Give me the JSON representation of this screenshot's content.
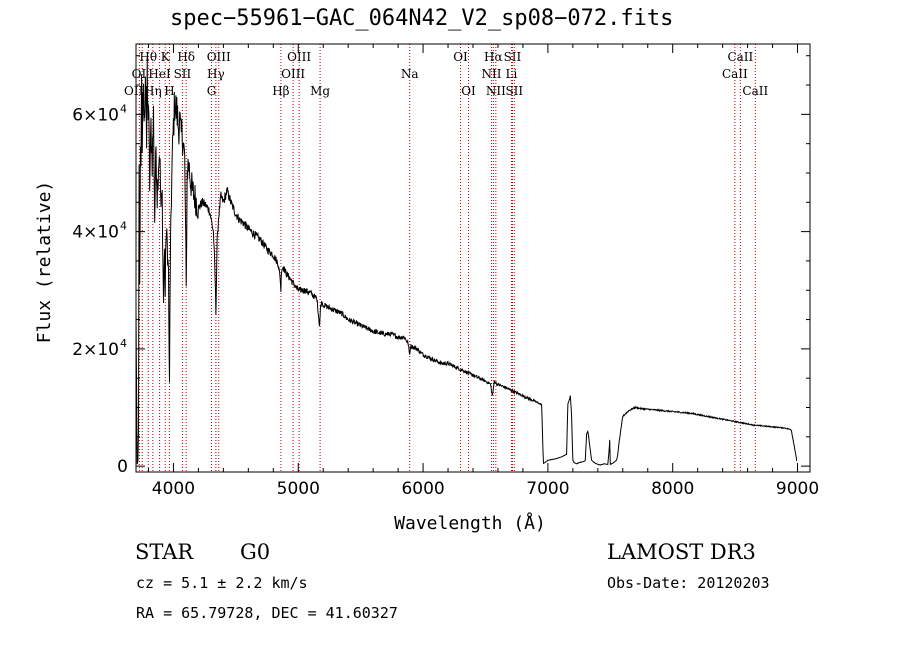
{
  "chart_data": {
    "type": "line",
    "title": "spec−55961−GAC_064N42_V2_sp08−072.fits",
    "xlabel": "Wavelength (Å)",
    "ylabel": "Flux (relative)",
    "xlim": [
      3700,
      9100
    ],
    "ylim": [
      -1000,
      72000
    ],
    "x_ticks": [
      {
        "value": 4000,
        "label": "4000"
      },
      {
        "value": 5000,
        "label": "5000"
      },
      {
        "value": 6000,
        "label": "6000"
      },
      {
        "value": 7000,
        "label": "7000"
      },
      {
        "value": 8000,
        "label": "8000"
      },
      {
        "value": 9000,
        "label": "9000"
      }
    ],
    "y_ticks": [
      {
        "value": 0,
        "base": "0",
        "exp": ""
      },
      {
        "value": 20000,
        "base": "2×10",
        "exp": "4"
      },
      {
        "value": 40000,
        "base": "4×10",
        "exp": "4"
      },
      {
        "value": 60000,
        "base": "6×10",
        "exp": "4"
      }
    ],
    "spectrum": {
      "x": [
        3700,
        3705,
        3710,
        3715,
        3720,
        3725,
        3730,
        3735,
        3740,
        3745,
        3750,
        3755,
        3760,
        3765,
        3770,
        3775,
        3780,
        3785,
        3790,
        3795,
        3800,
        3810,
        3820,
        3830,
        3840,
        3850,
        3860,
        3870,
        3880,
        3890,
        3900,
        3910,
        3920,
        3930,
        3934,
        3940,
        3950,
        3960,
        3965,
        3968,
        3972,
        3980,
        3990,
        4000,
        4010,
        4020,
        4030,
        4040,
        4050,
        4060,
        4070,
        4080,
        4090,
        4100,
        4102,
        4106,
        4110,
        4120,
        4130,
        4150,
        4170,
        4200,
        4230,
        4260,
        4290,
        4320,
        4330,
        4335,
        4340,
        4345,
        4350,
        4360,
        4380,
        4400,
        4430,
        4460,
        4500,
        4530,
        4560,
        4600,
        4650,
        4700,
        4750,
        4800,
        4840,
        4855,
        4861,
        4866,
        4880,
        4900,
        4950,
        5000,
        5050,
        5100,
        5150,
        5170,
        5175,
        5180,
        5190,
        5200,
        5250,
        5300,
        5350,
        5400,
        5450,
        5500,
        5550,
        5600,
        5650,
        5700,
        5750,
        5800,
        5850,
        5880,
        5892,
        5900,
        5950,
        6000,
        6050,
        6100,
        6150,
        6200,
        6250,
        6300,
        6350,
        6400,
        6450,
        6500,
        6540,
        6555,
        6563,
        6570,
        6590,
        6650,
        6700,
        6750,
        6800,
        6850,
        6900,
        6950,
        6960,
        6965,
        6975,
        6990,
        7000,
        7050,
        7100,
        7150,
        7160,
        7180,
        7190,
        7200,
        7205,
        7210,
        7230,
        7250,
        7290,
        7300,
        7310,
        7320,
        7350,
        7380,
        7400,
        7420,
        7450,
        7480,
        7490,
        7495,
        7500,
        7520,
        7550,
        7560,
        7570,
        7600,
        7650,
        7700,
        7750,
        7800,
        7850,
        7900,
        7950,
        8000,
        8050,
        8100,
        8150,
        8200,
        8250,
        8300,
        8350,
        8400,
        8450,
        8500,
        8550,
        8600,
        8650,
        8700,
        8750,
        8800,
        8850,
        8900,
        8950,
        8990,
        8995,
        9000
      ],
      "flux": [
        26000,
        13000,
        300,
        1000,
        6000,
        50000,
        30000,
        54000,
        53000,
        64000,
        56000,
        62000,
        67000,
        56000,
        60000,
        64000,
        66000,
        55000,
        66000,
        60000,
        62000,
        48000,
        58000,
        52000,
        60000,
        42000,
        55000,
        46000,
        52000,
        54000,
        44000,
        46000,
        28000,
        38000,
        29000,
        40000,
        38000,
        33000,
        19000,
        14000,
        27000,
        43000,
        52000,
        58000,
        62000,
        61000,
        60000,
        58000,
        59000,
        56000,
        57000,
        55000,
        52000,
        36000,
        30000,
        40000,
        50000,
        52000,
        50000,
        47000,
        46000,
        44000,
        45000,
        44500,
        43500,
        40000,
        35000,
        31000,
        26000,
        32000,
        38000,
        42000,
        46000,
        45000,
        47000,
        45000,
        43000,
        42000,
        41500,
        40500,
        39500,
        38500,
        37000,
        36000,
        34500,
        32000,
        30000,
        33500,
        34000,
        33000,
        31500,
        30000,
        30000,
        29500,
        28500,
        24000,
        25500,
        27500,
        28000,
        27500,
        27000,
        26500,
        26000,
        25000,
        24500,
        24000,
        23500,
        23000,
        22700,
        22500,
        22500,
        22000,
        22000,
        21000,
        19000,
        20500,
        20000,
        19000,
        18500,
        18000,
        17500,
        17500,
        17000,
        16500,
        16000,
        15500,
        15000,
        14500,
        14000,
        12000,
        13000,
        14500,
        14000,
        13500,
        13000,
        12500,
        12000,
        11500,
        11000,
        10500,
        3000,
        500,
        600,
        800,
        1000,
        1200,
        1500,
        2000,
        10500,
        12000,
        8500,
        1000,
        800,
        600,
        400,
        600,
        800,
        1000,
        5500,
        6000,
        1000,
        500,
        300,
        200,
        400,
        300,
        2500,
        4500,
        300,
        500,
        1000,
        2000,
        4000,
        8500,
        9500,
        10000,
        9800,
        9700,
        9600,
        9500,
        9400,
        9300,
        9200,
        9100,
        9000,
        8800,
        8600,
        8400,
        8200,
        8000,
        7800,
        7600,
        7400,
        7200,
        7000,
        6900,
        6800,
        6700,
        6600,
        6500,
        6200,
        1500,
        300
      ]
    },
    "lines": [
      {
        "name": "OII",
        "wl": 3727,
        "row": 3,
        "align": "end"
      },
      {
        "name": "OI",
        "wl": 3750,
        "row": 2,
        "align": "end"
      },
      {
        "name": "Hθ",
        "wl": 3798,
        "row": 1,
        "align": "middle"
      },
      {
        "name": "Hη",
        "wl": 3835,
        "row": 3,
        "align": "middle"
      },
      {
        "name": "HeI",
        "wl": 3889,
        "row": 2,
        "align": "middle"
      },
      {
        "name": "K",
        "wl": 3934,
        "row": 1,
        "align": "middle"
      },
      {
        "name": "H",
        "wl": 3968,
        "row": 3,
        "align": "middle"
      },
      {
        "name": "SII",
        "wl": 4072,
        "row": 2,
        "align": "middle"
      },
      {
        "name": "Hδ",
        "wl": 4102,
        "row": 1,
        "align": "middle"
      },
      {
        "name": "G",
        "wl": 4305,
        "row": 3,
        "align": "middle"
      },
      {
        "name": "Hγ",
        "wl": 4340,
        "row": 2,
        "align": "middle"
      },
      {
        "name": "OIII",
        "wl": 4363,
        "row": 1,
        "align": "middle"
      },
      {
        "name": "Hβ",
        "wl": 4861,
        "row": 3,
        "align": "middle"
      },
      {
        "name": "OIII",
        "wl": 4959,
        "row": 2,
        "align": "middle"
      },
      {
        "name": "OIII",
        "wl": 5007,
        "row": 1,
        "align": "middle"
      },
      {
        "name": "Mg",
        "wl": 5175,
        "row": 3,
        "align": "middle"
      },
      {
        "name": "Na",
        "wl": 5893,
        "row": 2,
        "align": "middle"
      },
      {
        "name": "OI",
        "wl": 6300,
        "row": 1,
        "align": "middle"
      },
      {
        "name": "OI",
        "wl": 6364,
        "row": 3,
        "align": "middle"
      },
      {
        "name": "NII",
        "wl": 6548,
        "row": 2,
        "align": "middle"
      },
      {
        "name": "Hα",
        "wl": 6563,
        "row": 1,
        "align": "middle"
      },
      {
        "name": "NII",
        "wl": 6583,
        "row": 3,
        "align": "middle"
      },
      {
        "name": "Li",
        "wl": 6708,
        "row": 2,
        "align": "middle"
      },
      {
        "name": "SII",
        "wl": 6716,
        "row": 1,
        "align": "middle"
      },
      {
        "name": "SII",
        "wl": 6731,
        "row": 3,
        "align": "middle"
      },
      {
        "name": "CaII",
        "wl": 8498,
        "row": 2,
        "align": "middle"
      },
      {
        "name": "CaII",
        "wl": 8542,
        "row": 1,
        "align": "middle"
      },
      {
        "name": "CaII",
        "wl": 8662,
        "row": 3,
        "align": "middle"
      }
    ]
  },
  "info": {
    "object_class": "STAR",
    "subclass": "G0",
    "survey": "LAMOST DR3",
    "redshift": "cz =  5.1 ±  2.2 km/s",
    "obs_date": "Obs-Date: 20120203",
    "coords": "RA =  65.79728, DEC =  41.60327"
  }
}
